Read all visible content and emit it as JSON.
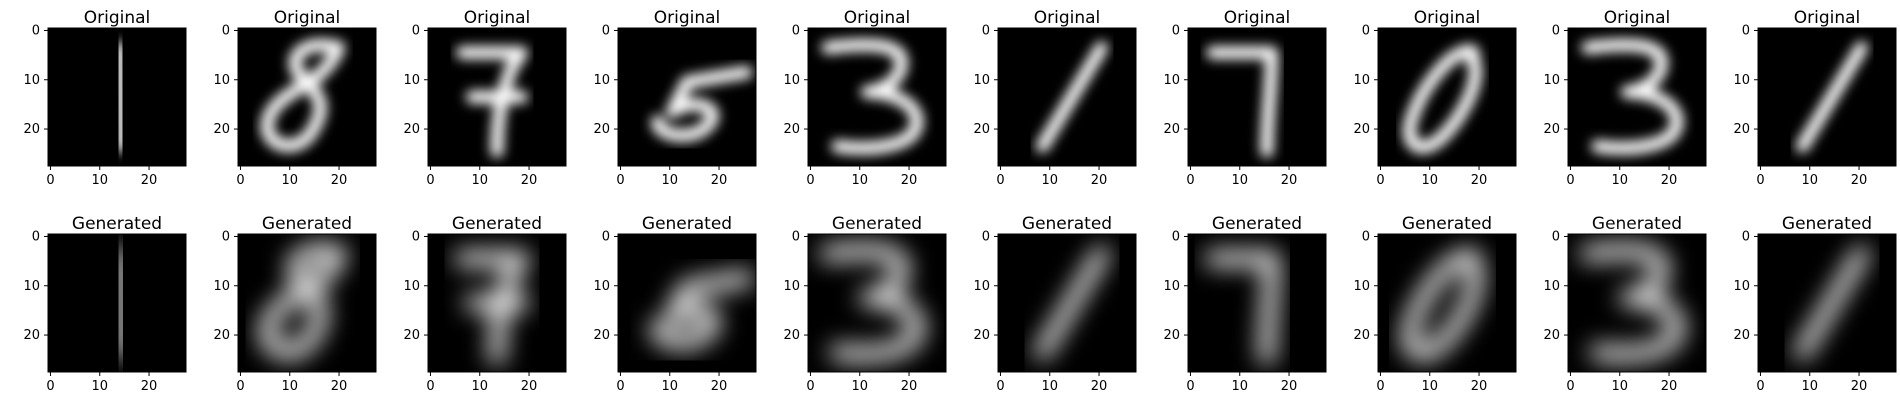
{
  "figure": {
    "rows": [
      {
        "title": "Original",
        "panel_titles": [
          "Original",
          "Original",
          "Original",
          "Original",
          "Original",
          "Original",
          "Original",
          "Original",
          "Original",
          "Original"
        ]
      },
      {
        "title": "Generated",
        "panel_titles": [
          "Generated",
          "Generated",
          "Generated",
          "Generated",
          "Generated",
          "Generated",
          "Generated",
          "Generated",
          "Generated",
          "Generated"
        ]
      }
    ],
    "digits": [
      "1",
      "8",
      "7",
      "5",
      "3",
      "1",
      "7",
      "0",
      "3",
      "1"
    ],
    "x_ticks": [
      "0",
      "10",
      "20"
    ],
    "y_ticks": [
      "0",
      "10",
      "20"
    ],
    "image_size": [
      28,
      28
    ],
    "colors": {
      "background": "#000000",
      "digit": "#ffffff",
      "frame": "#000000"
    }
  }
}
